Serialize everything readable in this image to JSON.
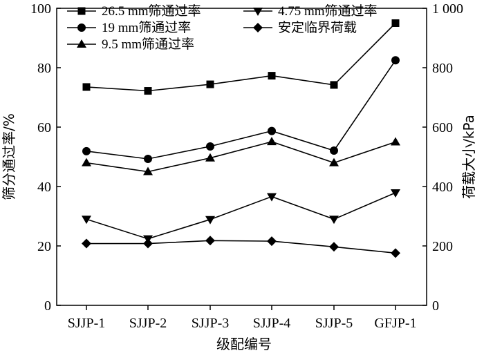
{
  "chart_data": {
    "type": "line",
    "categories": [
      "SJJP-1",
      "SJJP-2",
      "SJJP-3",
      "SJJP-4",
      "SJJP-5",
      "GFJP-1"
    ],
    "xlabel": "级配编号",
    "ylabel_left": "筛分通过率/%",
    "ylabel_right": "荷载大小/kPa",
    "ylim_left": [
      0,
      100
    ],
    "yticks_left": [
      "0",
      "20",
      "40",
      "60",
      "80",
      "100"
    ],
    "ylim_right": [
      0,
      1000
    ],
    "yticks_right": [
      "0",
      "200",
      "400",
      "600",
      "800",
      "1 000"
    ],
    "series": [
      {
        "name": "26.5 mm筛通过率",
        "marker": "square",
        "axis": "left",
        "values": [
          73.5,
          72.2,
          74.4,
          77.3,
          74.2,
          95.0
        ]
      },
      {
        "name": "19 mm筛通过率",
        "marker": "circle",
        "axis": "left",
        "values": [
          51.9,
          49.3,
          53.5,
          58.7,
          52.1,
          82.5
        ]
      },
      {
        "name": "9.5 mm筛通过率",
        "marker": "triangle-up",
        "axis": "left",
        "values": [
          48.0,
          45.0,
          49.6,
          55.1,
          48.0,
          55.0
        ]
      },
      {
        "name": "4.75 mm筛通过率",
        "marker": "triangle-down",
        "axis": "left",
        "values": [
          29.0,
          22.4,
          28.9,
          36.6,
          29.0,
          37.9
        ]
      },
      {
        "name": "安定临界荷载",
        "marker": "diamond",
        "axis": "right",
        "values": [
          208,
          208,
          218,
          216,
          197,
          176
        ]
      }
    ]
  }
}
